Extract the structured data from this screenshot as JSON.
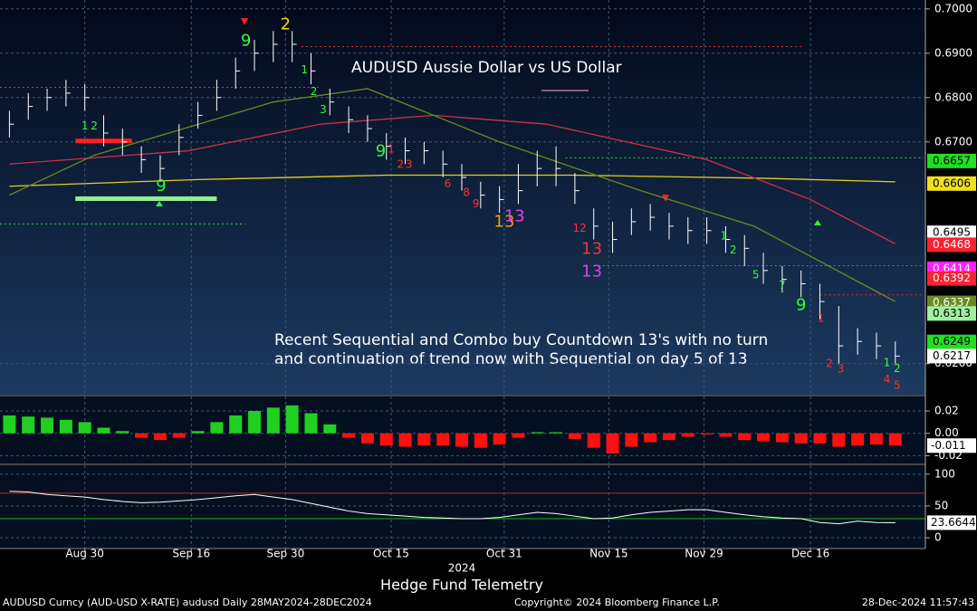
{
  "chart_data": [
    {
      "type": "ohlc",
      "title": "AUDUSD Aussie Dollar vs US Dollar",
      "annotation": [
        "Recent Sequential and Combo buy Countdown 13's with no turn",
        "and continuation of trend now with Sequential on day 5 of 13"
      ],
      "color": "#ffffff",
      "x": [
        0,
        2,
        4,
        6,
        8,
        10,
        12,
        14,
        16,
        18,
        20,
        22,
        24,
        26,
        28,
        30,
        32,
        34,
        36,
        38,
        40,
        42,
        44,
        46,
        48,
        50,
        52,
        54,
        56,
        58,
        60,
        62,
        64,
        66,
        68,
        70,
        72,
        74,
        76,
        78,
        80,
        82,
        84,
        86,
        88,
        90,
        92,
        94
      ],
      "high": [
        0.677,
        0.681,
        0.682,
        0.684,
        0.683,
        0.676,
        0.673,
        0.669,
        0.667,
        0.674,
        0.679,
        0.684,
        0.689,
        0.693,
        0.695,
        0.695,
        0.69,
        0.682,
        0.678,
        0.676,
        0.672,
        0.671,
        0.67,
        0.668,
        0.665,
        0.661,
        0.66,
        0.665,
        0.668,
        0.669,
        0.663,
        0.655,
        0.652,
        0.655,
        0.656,
        0.654,
        0.653,
        0.653,
        0.651,
        0.649,
        0.645,
        0.642,
        0.641,
        0.638,
        0.633,
        0.628,
        0.627,
        0.625
      ],
      "low": [
        0.671,
        0.675,
        0.677,
        0.678,
        0.677,
        0.669,
        0.667,
        0.663,
        0.661,
        0.667,
        0.673,
        0.677,
        0.682,
        0.686,
        0.688,
        0.688,
        0.683,
        0.676,
        0.672,
        0.67,
        0.666,
        0.665,
        0.665,
        0.662,
        0.659,
        0.655,
        0.654,
        0.656,
        0.66,
        0.66,
        0.656,
        0.648,
        0.645,
        0.649,
        0.65,
        0.648,
        0.647,
        0.647,
        0.645,
        0.642,
        0.638,
        0.636,
        0.635,
        0.63,
        0.62,
        0.622,
        0.621,
        0.62
      ],
      "close": [
        0.674,
        0.678,
        0.68,
        0.681,
        0.68,
        0.672,
        0.67,
        0.666,
        0.664,
        0.671,
        0.676,
        0.68,
        0.686,
        0.69,
        0.692,
        0.692,
        0.686,
        0.679,
        0.675,
        0.673,
        0.669,
        0.668,
        0.668,
        0.665,
        0.662,
        0.658,
        0.657,
        0.659,
        0.664,
        0.664,
        0.659,
        0.651,
        0.648,
        0.652,
        0.653,
        0.651,
        0.65,
        0.65,
        0.648,
        0.646,
        0.641,
        0.639,
        0.638,
        0.634,
        0.624,
        0.625,
        0.624,
        0.6217
      ],
      "overlays": [
        {
          "color": "#e0d020",
          "x": [
            0,
            20,
            40,
            60,
            80,
            94
          ],
          "values": [
            0.66,
            0.6615,
            0.6625,
            0.6625,
            0.6618,
            0.661
          ]
        },
        {
          "color": "#d03048",
          "x": [
            0,
            19,
            33,
            45,
            57,
            74,
            85,
            94
          ],
          "values": [
            0.665,
            0.668,
            0.674,
            0.676,
            0.674,
            0.666,
            0.657,
            0.647
          ]
        },
        {
          "color": "#6a8a20",
          "x": [
            0,
            9,
            28,
            38,
            52,
            67,
            79,
            94
          ],
          "values": [
            0.658,
            0.667,
            0.679,
            0.682,
            0.67,
            0.659,
            0.651,
            0.634
          ]
        }
      ],
      "levels": [
        {
          "value": 0.6915,
          "from": 31,
          "to": 84,
          "color": "#e03030"
        },
        {
          "value": 0.6823,
          "from": -1,
          "to": 33,
          "color": "#e03030"
        },
        {
          "value": 0.6664,
          "from": 59,
          "to": 97,
          "color": "#30d030"
        },
        {
          "value": 0.6515,
          "from": -1,
          "to": 25,
          "color": "#30d030"
        },
        {
          "value": 0.6421,
          "from": 62,
          "to": 97,
          "color": "#b040d0"
        },
        {
          "value": 0.6355,
          "from": 86,
          "to": 97,
          "color": "#e03030"
        }
      ],
      "tdst": [
        {
          "value": 0.6702,
          "from": 7,
          "to": 13,
          "color": "#ff2020"
        },
        {
          "value": 0.6572,
          "from": 7,
          "to": 22,
          "color": "#90ee90"
        }
      ],
      "counts": [
        {
          "text": "9",
          "x": 25.1,
          "y": 0.6927,
          "color": "#33ff33"
        },
        {
          "text": "2",
          "x": 29.3,
          "y": 0.6964,
          "color": "#ffd000"
        },
        {
          "text": "9",
          "x": 16.1,
          "y": 0.6599,
          "color": "#33ff33"
        },
        {
          "text": "9",
          "x": 39.4,
          "y": 0.6678,
          "color": "#33ff33"
        },
        {
          "text": "13",
          "x": 52.5,
          "y": 0.6519,
          "color": "#ff9a00"
        },
        {
          "text": "13",
          "x": 53.6,
          "y": 0.6531,
          "color": "#e040e0"
        },
        {
          "text": "13",
          "x": 61.8,
          "y": 0.6458,
          "color": "#ff3030"
        },
        {
          "text": "13",
          "x": 61.8,
          "y": 0.6407,
          "color": "#e040e0"
        },
        {
          "text": "9",
          "x": 84,
          "y": 0.6331,
          "color": "#33ff33"
        }
      ],
      "small_counts": [
        {
          "text": "1",
          "x": 8,
          "y": 0.6735,
          "color": "#33ff33"
        },
        {
          "text": "2",
          "x": 9,
          "y": 0.6735,
          "color": "#33ff33"
        },
        {
          "text": "1",
          "x": 31.3,
          "y": 0.6862,
          "color": "#33ff33"
        },
        {
          "text": "2",
          "x": 32.3,
          "y": 0.6813,
          "color": "#33ff33"
        },
        {
          "text": "3",
          "x": 33.3,
          "y": 0.6772,
          "color": "#33ff33"
        },
        {
          "text": "1",
          "x": 40.5,
          "y": 0.6683,
          "color": "#ff3030"
        },
        {
          "text": "2",
          "x": 41.5,
          "y": 0.6648,
          "color": "#ff3030"
        },
        {
          "text": "3",
          "x": 42.4,
          "y": 0.6648,
          "color": "#ff3030"
        },
        {
          "text": "6",
          "x": 46.5,
          "y": 0.6605,
          "color": "#ff3030"
        },
        {
          "text": "8",
          "x": 48.5,
          "y": 0.6585,
          "color": "#ff3030"
        },
        {
          "text": "9",
          "x": 49.5,
          "y": 0.656,
          "color": "#ff3030"
        },
        {
          "text": "12",
          "x": 60.5,
          "y": 0.6505,
          "color": "#ff3030"
        },
        {
          "text": "1",
          "x": 75.8,
          "y": 0.6487,
          "color": "#33ff33"
        },
        {
          "text": "2",
          "x": 76.8,
          "y": 0.6456,
          "color": "#33ff33"
        },
        {
          "text": "5",
          "x": 79.2,
          "y": 0.6399,
          "color": "#33ff33"
        },
        {
          "text": "7",
          "x": 82,
          "y": 0.6376,
          "color": "#33ff33"
        },
        {
          "text": "1",
          "x": 86.1,
          "y": 0.6301,
          "color": "#ff3030"
        },
        {
          "text": "2",
          "x": 87,
          "y": 0.6199,
          "color": "#ff3030"
        },
        {
          "text": "3",
          "x": 88.2,
          "y": 0.6187,
          "color": "#ff3030"
        },
        {
          "text": "1",
          "x": 93.1,
          "y": 0.6201,
          "color": "#33ff33"
        },
        {
          "text": "2",
          "x": 94.2,
          "y": 0.6188,
          "color": "#33ff33"
        },
        {
          "text": "4",
          "x": 93.1,
          "y": 0.6164,
          "color": "#ff3030"
        },
        {
          "text": "5",
          "x": 94.2,
          "y": 0.615,
          "color": "#ff3030"
        }
      ],
      "price_labels": [
        {
          "value": 0.6657,
          "color": "#20e020"
        },
        {
          "value": 0.6606,
          "color": "#f0e020"
        },
        {
          "value": 0.6495,
          "color": "#ffffff"
        },
        {
          "value": 0.6468,
          "color": "#ff2030"
        },
        {
          "value": 0.6414,
          "color": "#ff20ff"
        },
        {
          "value": 0.6392,
          "color": "#ff2030"
        },
        {
          "value": 0.6337,
          "color": "#6a8a20"
        },
        {
          "value": 0.6313,
          "color": "#a0f0a0"
        },
        {
          "value": 0.6249,
          "color": "#20e020"
        },
        {
          "value": 0.6217,
          "color": "#ffffff"
        }
      ],
      "xlim": [
        -1,
        97
      ],
      "ylim": [
        0.613,
        0.702
      ],
      "yticks": [
        {
          "value": 0.7,
          "label": "0.7000"
        },
        {
          "value": 0.69,
          "label": "0.6900"
        },
        {
          "value": 0.68,
          "label": "0.6800"
        },
        {
          "value": 0.67,
          "label": "0.6700"
        },
        {
          "value": 0.62,
          "label": "0.6200"
        }
      ],
      "grid": true
    },
    {
      "type": "bar",
      "x": [
        0,
        2,
        4,
        6,
        8,
        10,
        12,
        14,
        16,
        18,
        20,
        22,
        24,
        26,
        28,
        30,
        32,
        34,
        36,
        38,
        40,
        42,
        44,
        46,
        48,
        50,
        52,
        54,
        56,
        58,
        60,
        62,
        64,
        66,
        68,
        70,
        72,
        74,
        76,
        78,
        80,
        82,
        84,
        86,
        88,
        90,
        92,
        94
      ],
      "values": [
        0.016,
        0.015,
        0.014,
        0.012,
        0.01,
        0.005,
        0.002,
        -0.004,
        -0.006,
        -0.004,
        0.002,
        0.01,
        0.016,
        0.02,
        0.023,
        0.025,
        0.018,
        0.008,
        -0.004,
        -0.009,
        -0.011,
        -0.012,
        -0.011,
        -0.011,
        -0.012,
        -0.013,
        -0.01,
        -0.004,
        0.001,
        0.001,
        -0.005,
        -0.013,
        -0.018,
        -0.012,
        -0.008,
        -0.006,
        -0.003,
        -0.001,
        -0.003,
        -0.006,
        -0.007,
        -0.008,
        -0.009,
        -0.009,
        -0.012,
        -0.011,
        -0.01,
        -0.011
      ],
      "pos_color": "#20d020",
      "neg_color": "#ff1010",
      "last_label": -0.011,
      "xlim": [
        -1,
        97
      ],
      "ylim": [
        -0.027,
        0.033
      ],
      "yticks": [
        0.02,
        {
          "value": 0,
          "label": "0.00"
        },
        -0.02
      ],
      "grid": true
    },
    {
      "type": "line",
      "x": [
        0,
        2,
        4,
        6,
        8,
        10,
        12,
        14,
        16,
        18,
        20,
        22,
        24,
        26,
        28,
        30,
        32,
        34,
        36,
        38,
        40,
        42,
        44,
        46,
        48,
        50,
        52,
        54,
        56,
        58,
        60,
        62,
        64,
        66,
        68,
        70,
        72,
        74,
        76,
        78,
        80,
        82,
        84,
        86,
        88,
        90,
        92,
        94
      ],
      "values": [
        73,
        72,
        68,
        66,
        64,
        60,
        57,
        55,
        56,
        58,
        60,
        63,
        66,
        68,
        64,
        60,
        54,
        48,
        42,
        38,
        36,
        34,
        32,
        31,
        30,
        30,
        32,
        36,
        40,
        38,
        34,
        30,
        31,
        36,
        40,
        42,
        44,
        44,
        40,
        36,
        33,
        31,
        30,
        24,
        22,
        26,
        24,
        23.6644
      ],
      "color": "#ffffff",
      "ref_lines": [
        {
          "value": 70,
          "color": "#c02020"
        },
        {
          "value": 30,
          "color": "#20b020"
        }
      ],
      "last_label": 23.6644,
      "xlim": [
        -1,
        97
      ],
      "ylim": [
        -17,
        114
      ],
      "yticks": [
        100,
        50,
        0
      ],
      "xticks": [
        {
          "value": 8,
          "label": "Aug 30"
        },
        {
          "value": 19.3,
          "label": "Sep 16"
        },
        {
          "value": 29.3,
          "label": "Sep 30"
        },
        {
          "value": 40.5,
          "label": "Oct 15"
        },
        {
          "value": 52.5,
          "label": "Oct 31"
        },
        {
          "value": 63.6,
          "label": "Nov 15"
        },
        {
          "value": 73.7,
          "label": "Nov 29"
        },
        {
          "value": 85,
          "label": "Dec 16"
        }
      ],
      "grid": true
    }
  ],
  "year": "2024",
  "source": "Hedge Fund Telemetry",
  "footer": {
    "security": "AUDUSD Curncy (AUD-USD X-RATE) audusd  Daily 28MAY2024-28DEC2024",
    "copyright": "Copyright© 2024 Bloomberg Finance L.P.",
    "timestamp": "28-Dec-2024 11:57:43"
  }
}
